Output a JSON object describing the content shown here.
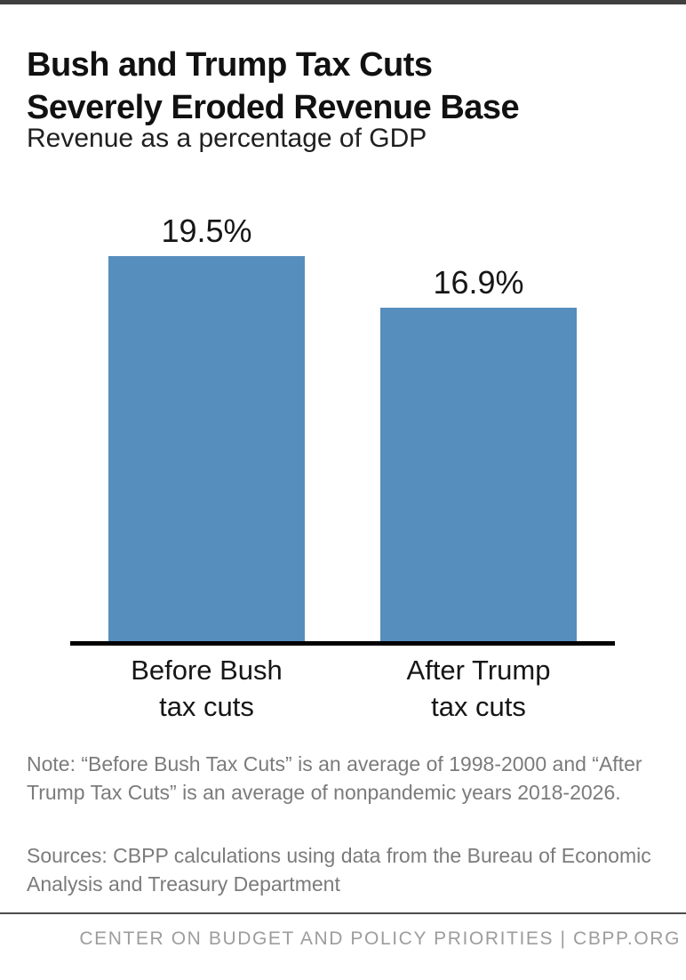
{
  "page": {
    "title_line1": "Bush and Trump Tax Cuts",
    "title_line2": "Severely Eroded Revenue Base",
    "subtitle": "Revenue as a percentage of GDP",
    "note": "Note: “Before Bush Tax Cuts” is an average of 1998-2000 and “After Trump Tax Cuts” is an average of nonpandemic years 2018-2026.",
    "sources": "Sources: CBPP calculations using data from the Bureau of Economic Analysis and Treasury Department",
    "footer": "CENTER ON BUDGET AND POLICY PRIORITIES | CBPP.ORG"
  },
  "colors": {
    "bar": "#568EBD",
    "axis": "#000000",
    "top_strip": "#3f3f3f",
    "note_text": "#7b7b7b",
    "footer_text": "#9d9d9d",
    "footer_divider": "#4b4b4b"
  },
  "chart_data": {
    "type": "bar",
    "title": "Bush and Trump Tax Cuts Severely Eroded Revenue Base",
    "subtitle": "Revenue as a percentage of GDP",
    "categories": [
      "Before Bush tax cuts",
      "After Trump tax cuts"
    ],
    "categories_lines": [
      [
        "Before Bush",
        "tax cuts"
      ],
      [
        "After Trump",
        "tax cuts"
      ]
    ],
    "values": [
      19.5,
      16.9
    ],
    "value_labels": [
      "19.5%",
      "16.9%"
    ],
    "unit": "percent of GDP",
    "ylim": [
      0,
      21.9
    ],
    "grid": false,
    "legend": "none",
    "value_label_position": "above",
    "bar_color": "#568EBD"
  }
}
